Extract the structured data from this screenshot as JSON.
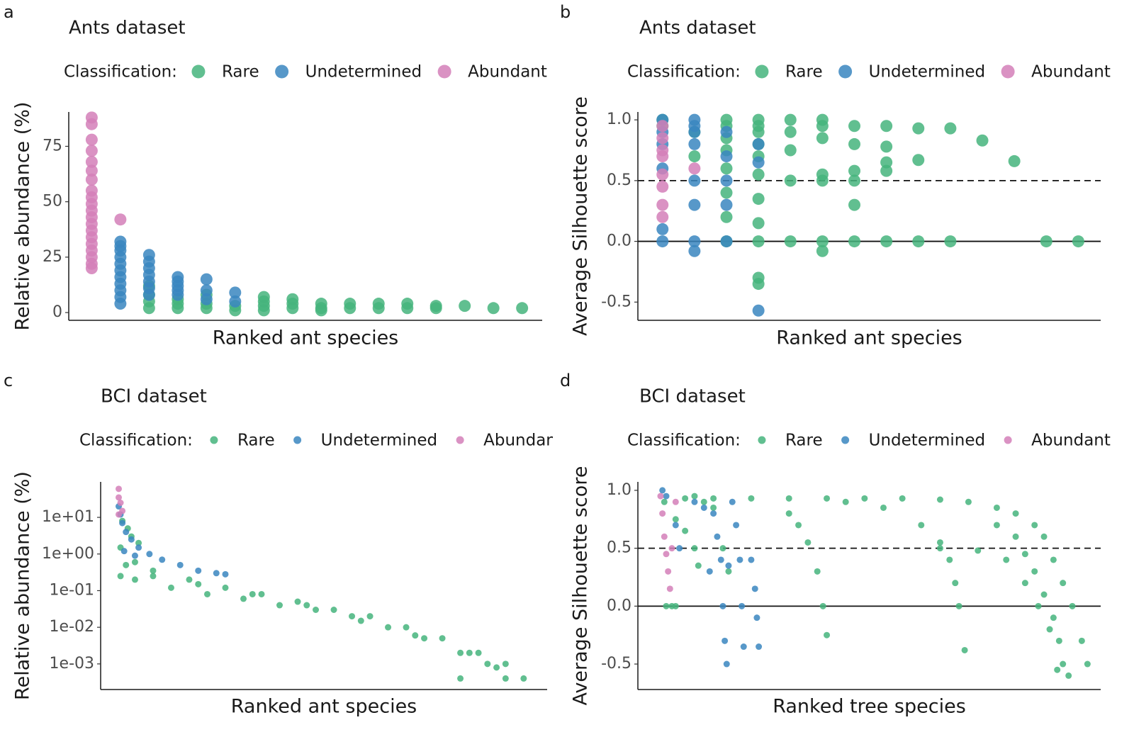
{
  "chart_data": [
    {
      "type": "scatter",
      "panel_label": "a",
      "title": "Ants dataset",
      "legend_title": "Classification:",
      "xlabel": "Ranked ant species",
      "ylabel": "Relative abundance (%)",
      "xlim": [
        0.2,
        16.7
      ],
      "ylim": [
        -3.5,
        90.5
      ],
      "yticks": [
        0,
        25,
        50,
        75
      ],
      "series": [
        {
          "name": "Rare",
          "color": "#45b47c",
          "x": [
            3,
            3,
            3,
            3,
            4,
            4,
            4,
            5,
            5,
            5,
            6,
            6,
            7,
            7,
            7,
            7,
            8,
            8,
            8,
            9,
            9,
            9,
            10,
            10,
            11,
            11,
            12,
            12,
            13,
            13,
            14,
            15,
            16
          ],
          "values": [
            12,
            8,
            5,
            2,
            6,
            4,
            2,
            8,
            4,
            2,
            3,
            1,
            7,
            5,
            3,
            1,
            6,
            4,
            2,
            4,
            2,
            1,
            4,
            2,
            4,
            2,
            4,
            2,
            3,
            2,
            3,
            2,
            2
          ]
        },
        {
          "name": "Undetermined",
          "color": "#3a86c0",
          "x": [
            2,
            2,
            2,
            2,
            2,
            2,
            2,
            2,
            2,
            2,
            2,
            3,
            3,
            3,
            3,
            3,
            3,
            3,
            4,
            4,
            4,
            4,
            4,
            5,
            5,
            5,
            6,
            6
          ],
          "values": [
            32,
            30,
            28,
            25,
            22,
            19,
            16,
            13,
            10,
            7,
            4,
            26,
            23,
            20,
            17,
            14,
            11,
            8,
            16,
            14,
            12,
            10,
            8,
            15,
            10,
            6,
            9,
            5
          ]
        },
        {
          "name": "Abundant",
          "color": "#d37fb8",
          "x": [
            1,
            1,
            1,
            1,
            1,
            1,
            1,
            1,
            1,
            1,
            1,
            1,
            1,
            1,
            1,
            1,
            1,
            1,
            1,
            1,
            2
          ],
          "values": [
            88,
            85,
            78,
            73,
            68,
            64,
            60,
            55,
            52,
            49,
            46,
            43,
            40,
            37,
            34,
            31,
            28,
            25,
            22,
            20,
            42
          ]
        }
      ]
    },
    {
      "type": "scatter",
      "panel_label": "b",
      "title": "Ants dataset",
      "legend_title": "Classification:",
      "xlabel": "Ranked ant species",
      "ylabel": "Average Silhouette score",
      "xlim": [
        0.23,
        14.7
      ],
      "ylim": [
        -0.65,
        1.065
      ],
      "yticks": [
        {
          "value": -0.5,
          "label": "-0.5"
        },
        {
          "value": 0,
          "label": "0.0"
        },
        0.5,
        {
          "value": 1,
          "label": "1.0"
        }
      ],
      "hlines": [
        {
          "value": 0.5,
          "dashed": true
        },
        {
          "value": 0,
          "dashed": false
        }
      ],
      "series": [
        {
          "name": "Rare",
          "color": "#45b47c",
          "x": [
            1,
            1,
            2,
            2,
            3,
            3,
            3,
            3,
            3,
            3,
            3,
            3,
            4,
            4,
            4,
            4,
            4,
            4,
            4,
            4,
            4,
            4,
            4,
            5,
            5,
            5,
            5,
            5,
            6,
            6,
            6,
            6,
            6,
            6,
            6,
            7,
            7,
            7,
            7,
            7,
            7,
            8,
            8,
            8,
            8,
            8,
            9,
            9,
            9,
            10,
            10,
            11,
            12,
            13,
            14
          ],
          "values": [
            1.0,
            0.95,
            0.9,
            0.7,
            1.0,
            0.95,
            0.85,
            0.75,
            0.6,
            0.4,
            0.2,
            0,
            1.0,
            0.95,
            0.9,
            0.8,
            0.7,
            0.55,
            0.35,
            0.15,
            0,
            -0.3,
            -0.35,
            1.0,
            0.9,
            0.75,
            0.5,
            0,
            1.0,
            0.95,
            0.85,
            0.55,
            0.5,
            0,
            -0.08,
            0.95,
            0.8,
            0.58,
            0.5,
            0.3,
            0,
            0.95,
            0.78,
            0.65,
            0.58,
            0,
            0.93,
            0.67,
            0,
            0.93,
            0,
            0.83,
            0.66,
            0,
            0
          ]
        },
        {
          "name": "Undetermined",
          "color": "#3a86c0",
          "x": [
            1,
            1,
            1,
            1,
            1,
            1,
            2,
            2,
            2,
            2,
            2,
            2,
            2,
            2,
            3,
            3,
            3,
            3,
            3,
            4,
            4,
            4
          ],
          "values": [
            1.0,
            0.9,
            0.8,
            0.6,
            0.1,
            0,
            1.0,
            0.95,
            0.9,
            0.8,
            0.5,
            0.3,
            0,
            -0.08,
            0.9,
            0.7,
            0.5,
            0.3,
            0,
            0.8,
            0.65,
            -0.57
          ]
        },
        {
          "name": "Abundant",
          "color": "#d37fb8",
          "x": [
            1,
            1,
            1,
            1,
            1,
            1,
            1,
            1,
            2
          ],
          "values": [
            0.95,
            0.85,
            0.75,
            0.7,
            0.55,
            0.45,
            0.3,
            0.2,
            0.6
          ]
        }
      ]
    },
    {
      "type": "scatter",
      "panel_label": "c",
      "title": "BCI dataset",
      "legend_title": "Classification:",
      "xlabel": "Ranked ant species",
      "ylabel": "Relative abundance (%)",
      "log_y": true,
      "xlim": [
        -9,
        238
      ],
      "ylim": [
        0.0002,
        93
      ],
      "yticks": [
        {
          "value": 0.001,
          "label": "1e-03"
        },
        {
          "value": 0.01,
          "label": "1e-02"
        },
        {
          "value": 0.1,
          "label": "1e-01"
        },
        {
          "value": 1,
          "label": "1e+00"
        },
        {
          "value": 10,
          "label": "1e+01"
        }
      ],
      "series": [
        {
          "name": "Rare",
          "color": "#45b47c",
          "x": [
            2,
            10,
            20,
            40,
            60,
            80,
            100,
            120,
            140,
            160,
            180,
            200,
            215,
            2,
            10,
            30,
            50,
            70,
            90,
            110,
            130,
            150,
            170,
            190,
            205,
            225,
            5,
            20,
            45,
            75,
            105,
            135,
            165,
            195,
            210,
            190,
            215,
            3,
            6,
            8,
            12
          ],
          "values": [
            1.5,
            0.6,
            0.35,
            0.2,
            0.12,
            0.08,
            0.05,
            0.03,
            0.02,
            0.01,
            0.005,
            0.002,
            0.001,
            0.25,
            0.2,
            0.12,
            0.08,
            0.06,
            0.04,
            0.03,
            0.02,
            0.01,
            0.005,
            0.002,
            0.001,
            0.0004,
            0.5,
            0.25,
            0.15,
            0.08,
            0.04,
            0.015,
            0.006,
            0.002,
            0.0008,
            0.0004,
            0.0004,
            8,
            5,
            3,
            2
          ]
        },
        {
          "name": "Undetermined",
          "color": "#3a86c0",
          "x": [
            1,
            2,
            3,
            5,
            8,
            12,
            18,
            25,
            35,
            45,
            55,
            60,
            4,
            10
          ],
          "values": [
            20,
            12,
            7,
            4,
            2.5,
            1.5,
            1,
            0.7,
            0.5,
            0.35,
            0.3,
            0.28,
            1.2,
            0.9
          ]
        },
        {
          "name": "Abundant",
          "color": "#d37fb8",
          "x": [
            1,
            1,
            2,
            3,
            1
          ],
          "values": [
            60,
            35,
            25,
            15,
            12
          ]
        }
      ]
    },
    {
      "type": "scatter",
      "panel_label": "d",
      "title": "BCI dataset",
      "legend_title": "Classification:",
      "xlabel": "Ranked tree species",
      "ylabel": "Average Silhouette score",
      "xlim": [
        -10,
        235
      ],
      "ylim": [
        -0.72,
        1.073
      ],
      "yticks": [
        {
          "value": -0.5,
          "label": "-0.5"
        },
        {
          "value": 0,
          "label": "0.0"
        },
        0.5,
        {
          "value": 1,
          "label": "1.0"
        }
      ],
      "hlines": [
        {
          "value": 0.5,
          "dashed": true
        },
        {
          "value": 0,
          "dashed": false
        }
      ],
      "series": [
        {
          "name": "Rare",
          "color": "#45b47c",
          "x": [
            5,
            8,
            10,
            4,
            10,
            15,
            20,
            22,
            15,
            30,
            50,
            70,
            90,
            110,
            130,
            150,
            165,
            180,
            190,
            200,
            205,
            210,
            215,
            220,
            225,
            228,
            100,
            120,
            140,
            150,
            155,
            158,
            160,
            163,
            70,
            75,
            80,
            85,
            88,
            90,
            180,
            190,
            195,
            200,
            205,
            210,
            213,
            215,
            218,
            150,
            170,
            185,
            195,
            202,
            208,
            212,
            20,
            25,
            30,
            35,
            38
          ],
          "values": [
            0,
            0,
            0,
            0.9,
            0.75,
            0.65,
            0.5,
            0.35,
            0.93,
            0.93,
            0.93,
            0.93,
            0.93,
            0.93,
            0.93,
            0.92,
            0.9,
            0.85,
            0.8,
            0.7,
            0.6,
            0.4,
            0.2,
            0,
            -0.3,
            -0.5,
            0.9,
            0.85,
            0.7,
            0.55,
            0.4,
            0.2,
            0,
            -0.38,
            0.8,
            0.7,
            0.55,
            0.3,
            0,
            -0.25,
            0.7,
            0.6,
            0.45,
            0.3,
            0.1,
            -0.1,
            -0.3,
            -0.5,
            -0.6,
            0.5,
            0.48,
            0.4,
            0.2,
            0,
            -0.2,
            -0.55,
            0.95,
            0.9,
            0.85,
            0.5,
            0.3
          ]
        },
        {
          "name": "Undetermined",
          "color": "#3a86c0",
          "x": [
            3,
            5,
            10,
            20,
            25,
            30,
            32,
            34,
            35,
            36,
            37,
            40,
            42,
            44,
            45,
            46,
            50,
            52,
            53,
            54,
            38,
            28,
            12
          ],
          "values": [
            1.0,
            0.95,
            0.7,
            0.9,
            0.85,
            0.8,
            0.6,
            0.4,
            0,
            -0.3,
            -0.5,
            0.9,
            0.7,
            0.4,
            0,
            -0.35,
            0.4,
            0.15,
            -0.1,
            -0.35,
            0.35,
            0.3,
            0.5
          ]
        },
        {
          "name": "Abundant",
          "color": "#d37fb8",
          "x": [
            2,
            3,
            4,
            5,
            6,
            7,
            8,
            10
          ],
          "values": [
            0.95,
            0.8,
            0.6,
            0.45,
            0.3,
            0.15,
            0.5,
            0.9
          ]
        }
      ]
    }
  ]
}
